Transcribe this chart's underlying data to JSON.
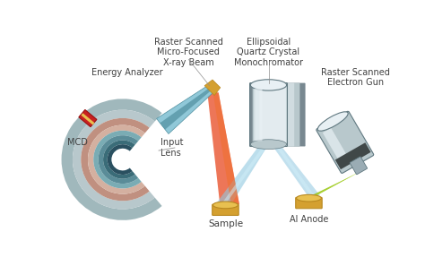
{
  "bg_color": "#ffffff",
  "labels": {
    "energy_analyzer": "Energy Analyzer",
    "input_lens": "Input\nLens",
    "mcd": "MCD",
    "raster_beam": "Raster Scanned\nMicro-Focused\nX-ray Beam",
    "monochromator": "Ellipsoidal\nQuartz Crystal\nMonochromator",
    "electron_gun": "Raster Scanned\nElectron Gun",
    "sample": "Sample",
    "al_anode": "Al Anode"
  },
  "colors": {
    "analyzer_outer_gray": "#a0b8bc",
    "analyzer_ring1": "#b8c8cc",
    "analyzer_mid_pink": "#c09080",
    "analyzer_inner_pink": "#d4b0a0",
    "analyzer_teal1": "#7aacb4",
    "analyzer_teal2": "#5a8c98",
    "analyzer_teal3": "#3a6c78",
    "analyzer_dark_edge": "#2a5060",
    "lens_blue_light": "#90c8d8",
    "lens_blue_dark": "#5090a0",
    "beam_red": "#e84820",
    "beam_orange": "#f07030",
    "beam_pink": "#f0a080",
    "xray_blue1": "#90c8e0",
    "xray_blue2": "#b8dff0",
    "xray_blue3": "#d0eef8",
    "cylinder_silver1": "#9aacb4",
    "cylinder_silver2": "#b8c8cc",
    "cylinder_silver3": "#d0dce0",
    "cylinder_light": "#e8f0f4",
    "cylinder_dark": "#607880",
    "cylinder_shadow": "#788890",
    "gold_dark": "#b88820",
    "gold_mid": "#d4a030",
    "gold_light": "#e8c050",
    "gold_top": "#f0d060",
    "mcd_red_dark": "#9a1010",
    "mcd_red": "#c82020",
    "mcd_red_light": "#e04040",
    "green_beam": "#90c010",
    "green_beam2": "#b0d830",
    "text_dark": "#404040",
    "arrow_gray": "#909090"
  },
  "figsize": [
    4.74,
    2.97
  ],
  "dpi": 100
}
